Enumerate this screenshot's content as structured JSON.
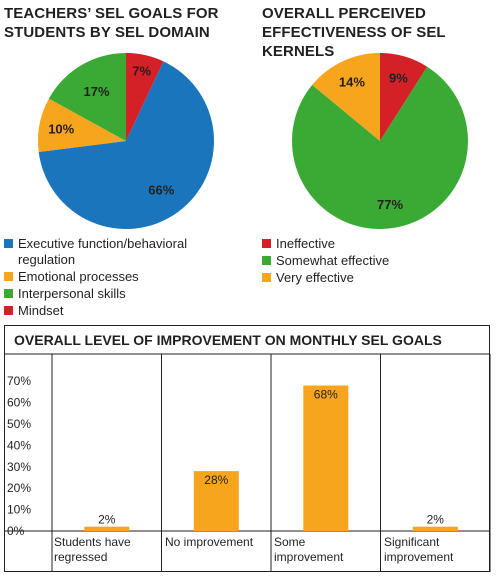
{
  "pie_charts": {
    "title_left": "TEACHERS’ SEL GOALS FOR\nSTUDENTS BY SEL DOMAIN",
    "title_right": "OVERALL PERCEIVED\nEFFECTIVENESS OF SEL KERNELS"
  },
  "bar_chart": {
    "title": "OVERALL LEVEL OF IMPROVEMENT ON MONTHLY SEL GOALS",
    "category_labels": [
      "Students have\nregressed",
      "No improvement",
      "Some\nimprovement",
      "Significant\nimprovement"
    ]
  },
  "colors": {
    "blue": "#1b75bc",
    "orange": "#f7a51c",
    "green": "#3aaa35",
    "red": "#d42027"
  },
  "chart_data": [
    {
      "type": "pie",
      "title": "TEACHERS’ SEL GOALS FOR STUDENTS BY SEL DOMAIN",
      "categories": [
        "Executive function/behavioral regulation",
        "Emotional processes",
        "Interpersonal skills",
        "Mindset"
      ],
      "values": [
        66,
        10,
        17,
        7
      ],
      "labels": [
        "66%",
        "10%",
        "17%",
        "7%"
      ],
      "colors": [
        "#1b75bc",
        "#f7a51c",
        "#3aaa35",
        "#d42027"
      ],
      "legend_position": "bottom"
    },
    {
      "type": "pie",
      "title": "OVERALL PERCEIVED EFFECTIVENESS OF SEL KERNELS",
      "categories": [
        "Ineffective",
        "Somewhat effective",
        "Very effective"
      ],
      "values": [
        9,
        77,
        14
      ],
      "labels": [
        "9%",
        "77%",
        "14%"
      ],
      "colors": [
        "#d42027",
        "#3aaa35",
        "#f7a51c"
      ],
      "legend_position": "bottom"
    },
    {
      "type": "bar",
      "title": "OVERALL LEVEL OF IMPROVEMENT ON MONTHLY SEL GOALS",
      "categories": [
        "Students have regressed",
        "No improvement",
        "Some improvement",
        "Significant improvement"
      ],
      "values": [
        2,
        28,
        68,
        2
      ],
      "labels": [
        "2%",
        "28%",
        "68%",
        "2%"
      ],
      "yticks": [
        "0%",
        "10%",
        "20%",
        "30%",
        "40%",
        "50%",
        "60%",
        "70%"
      ],
      "ylim": [
        0,
        75
      ],
      "color": "#f7a51c",
      "grid": false
    }
  ]
}
